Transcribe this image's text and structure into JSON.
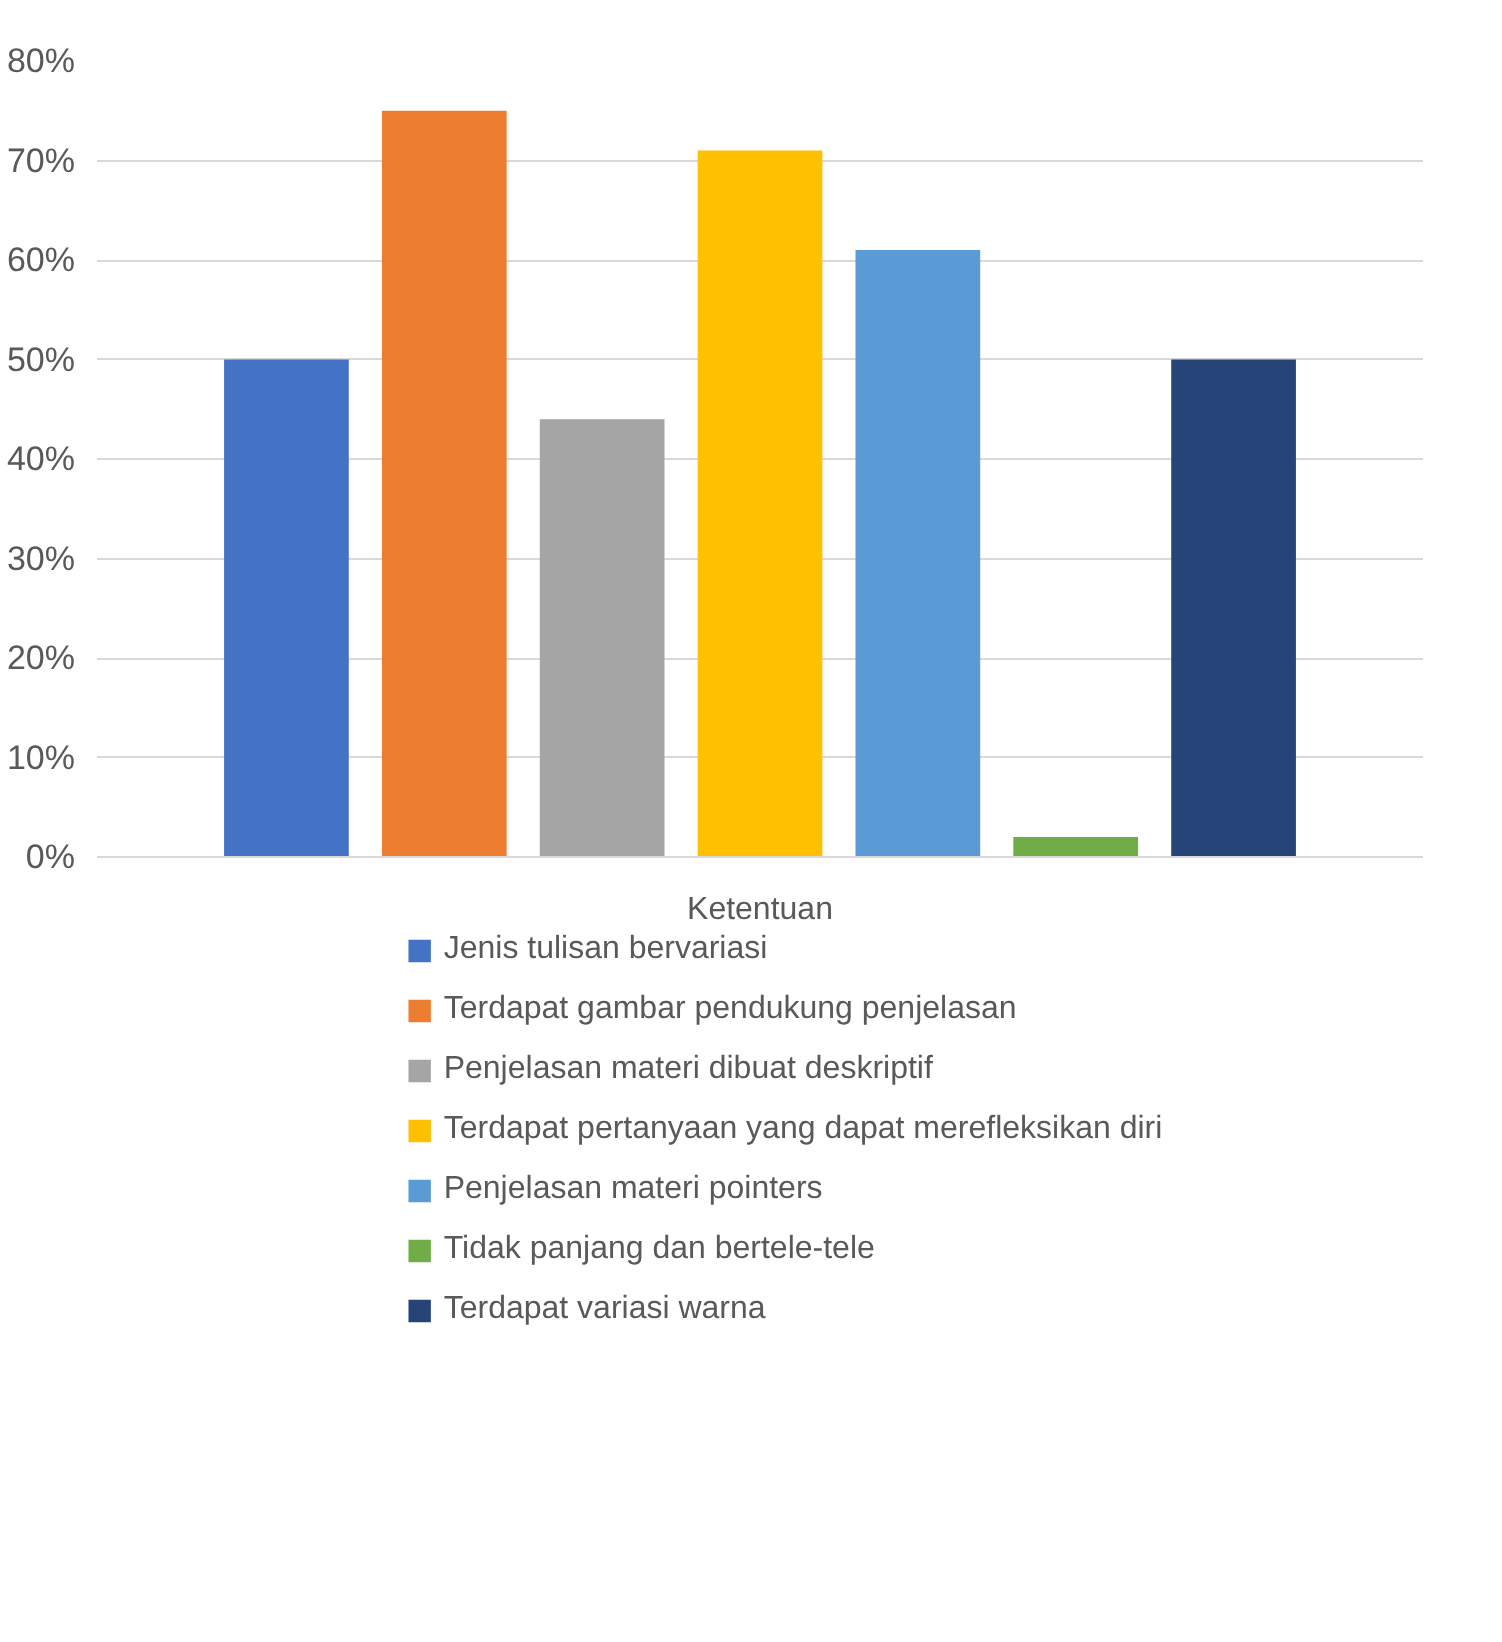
{
  "chart_data": {
    "type": "bar",
    "categories": [
      "Ketentuan"
    ],
    "series": [
      {
        "name": "Jenis tulisan bervariasi",
        "color": "#4472c4",
        "values": [
          50
        ]
      },
      {
        "name": "Terdapat gambar pendukung penjelasan",
        "color": "#ed7d31",
        "values": [
          75
        ]
      },
      {
        "name": "Penjelasan materi dibuat deskriptif",
        "color": "#a5a5a5",
        "values": [
          44
        ]
      },
      {
        "name": "Terdapat pertanyaan yang dapat merefleksikan diri",
        "color": "#ffc000",
        "values": [
          71
        ]
      },
      {
        "name": "Penjelasan materi pointers",
        "color": "#5b9bd5",
        "values": [
          61
        ]
      },
      {
        "name": "Tidak panjang dan bertele-tele",
        "color": "#70ad47",
        "values": [
          2
        ]
      },
      {
        "name": "Terdapat variasi warna",
        "color": "#264478",
        "values": [
          50
        ]
      }
    ],
    "ylim": [
      0,
      80
    ],
    "yticks": [
      {
        "value": 0,
        "label": "0%"
      },
      {
        "value": 10,
        "label": "10%"
      },
      {
        "value": 20,
        "label": "20%"
      },
      {
        "value": 30,
        "label": "30%"
      },
      {
        "value": 40,
        "label": "40%"
      },
      {
        "value": 50,
        "label": "50%"
      },
      {
        "value": 60,
        "label": "60%"
      },
      {
        "value": 70,
        "label": "70%"
      },
      {
        "value": 80,
        "label": "80%"
      }
    ],
    "grid": "y",
    "legend": "bottom"
  }
}
